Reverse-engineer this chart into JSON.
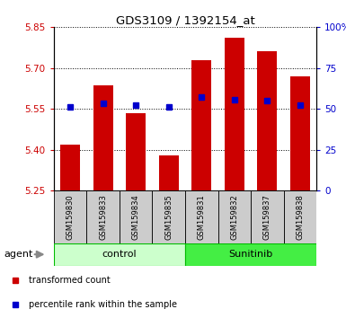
{
  "title": "GDS3109 / 1392154_at",
  "samples": [
    "GSM159830",
    "GSM159833",
    "GSM159834",
    "GSM159835",
    "GSM159831",
    "GSM159832",
    "GSM159837",
    "GSM159838"
  ],
  "bar_heights": [
    5.42,
    5.635,
    5.535,
    5.38,
    5.73,
    5.81,
    5.76,
    5.67
  ],
  "percentile_values": [
    5.557,
    5.572,
    5.563,
    5.557,
    5.592,
    5.585,
    5.582,
    5.563
  ],
  "ylim_left": [
    5.25,
    5.85
  ],
  "ylim_right": [
    0,
    100
  ],
  "yticks_left": [
    5.25,
    5.4,
    5.55,
    5.7,
    5.85
  ],
  "yticks_right": [
    0,
    25,
    50,
    75,
    100
  ],
  "bar_color": "#cc0000",
  "percentile_color": "#0000cc",
  "bar_width": 0.6,
  "groups": [
    {
      "label": "control",
      "indices": [
        0,
        1,
        2,
        3
      ],
      "color": "#ccffcc",
      "border_color": "#00bb00"
    },
    {
      "label": "Sunitinib",
      "indices": [
        4,
        5,
        6,
        7
      ],
      "color": "#44ee44",
      "border_color": "#00bb00"
    }
  ],
  "agent_label": "agent",
  "legend_items": [
    {
      "label": "transformed count",
      "color": "#cc0000"
    },
    {
      "label": "percentile rank within the sample",
      "color": "#0000cc"
    }
  ],
  "grid_color": "#000000",
  "title_color": "#000000",
  "left_tick_color": "#cc0000",
  "right_tick_color": "#0000cc",
  "xlabel_bg_color": "#cccccc",
  "arrow_color": "#888888"
}
